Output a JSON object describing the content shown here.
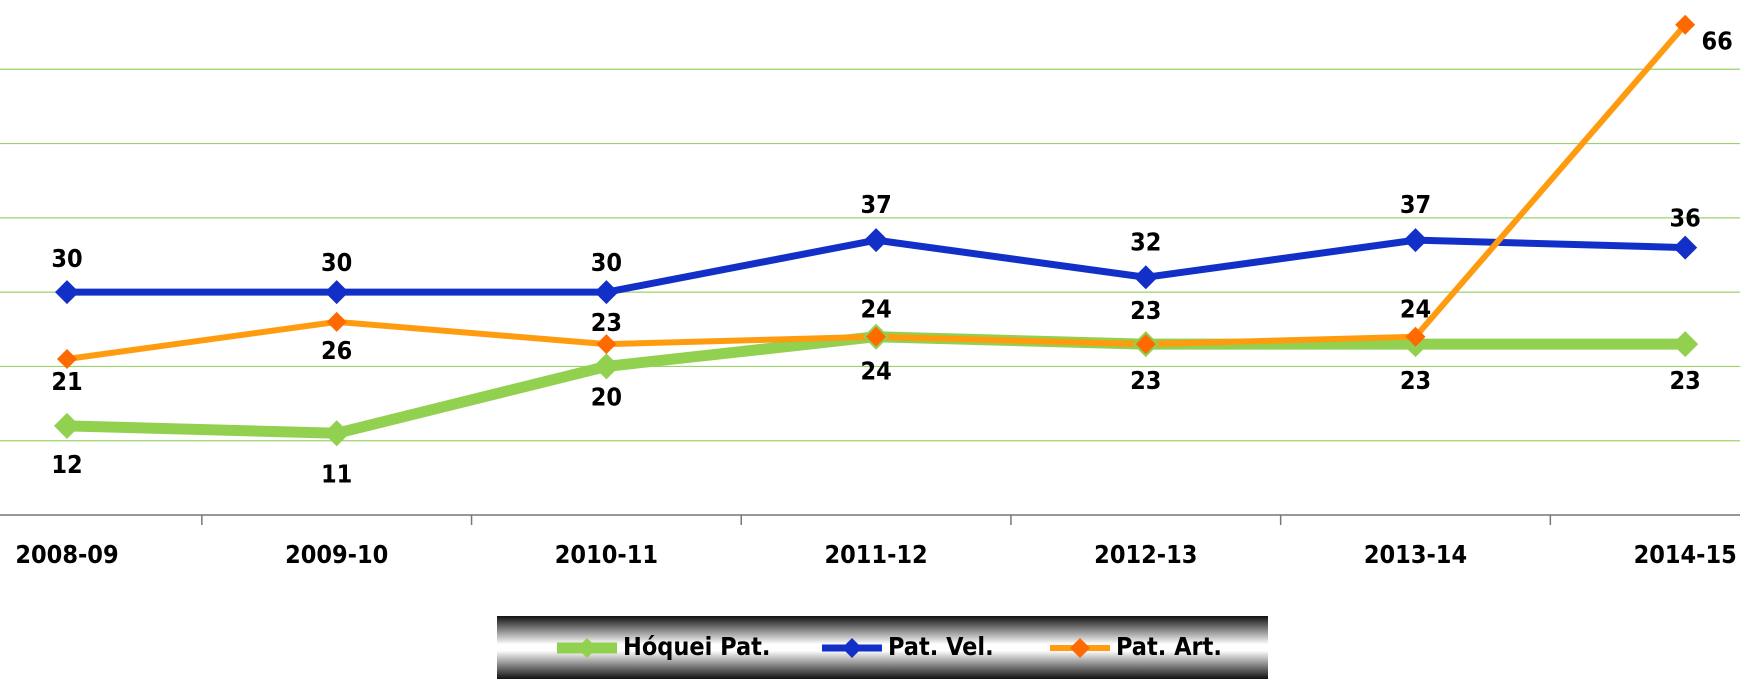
{
  "chart_data": {
    "type": "line",
    "categories": [
      "2008-09",
      "2009-10",
      "2010-11",
      "2011-12",
      "2012-13",
      "2013-14",
      "2014-15"
    ],
    "series": [
      {
        "name": "Hóquei Pat.",
        "color": "#92d050",
        "values": [
          12,
          11,
          20,
          24,
          23,
          23,
          23
        ]
      },
      {
        "name": "Pat. Vel.",
        "color": "#1230c8",
        "values": [
          30,
          30,
          30,
          37,
          32,
          37,
          36
        ]
      },
      {
        "name": "Pat. Art.",
        "color": "#ff9b0f",
        "values": [
          21,
          26,
          23,
          24,
          23,
          24,
          66
        ]
      }
    ],
    "ylim": [
      0,
      70
    ],
    "yticks": [
      0,
      10,
      20,
      30,
      40,
      50,
      60
    ],
    "grid": true
  }
}
